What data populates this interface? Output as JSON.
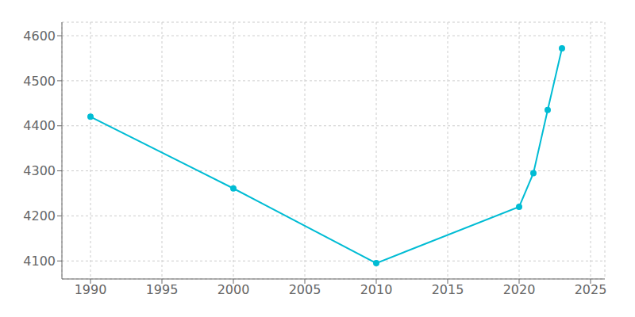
{
  "chart_data": {
    "type": "line",
    "x": [
      1990,
      2000,
      2010,
      2020,
      2021,
      2022,
      2023
    ],
    "values": [
      4420,
      4261,
      4095,
      4220,
      4295,
      4435,
      4572
    ],
    "color": "#00BCD4",
    "marker": "circle",
    "xlim": [
      1988,
      2026
    ],
    "ylim": [
      4060,
      4630
    ],
    "xticks": [
      1990,
      1995,
      2000,
      2005,
      2010,
      2015,
      2020,
      2025
    ],
    "yticks": [
      4100,
      4200,
      4300,
      4400,
      4500,
      4600
    ],
    "grid": true
  }
}
